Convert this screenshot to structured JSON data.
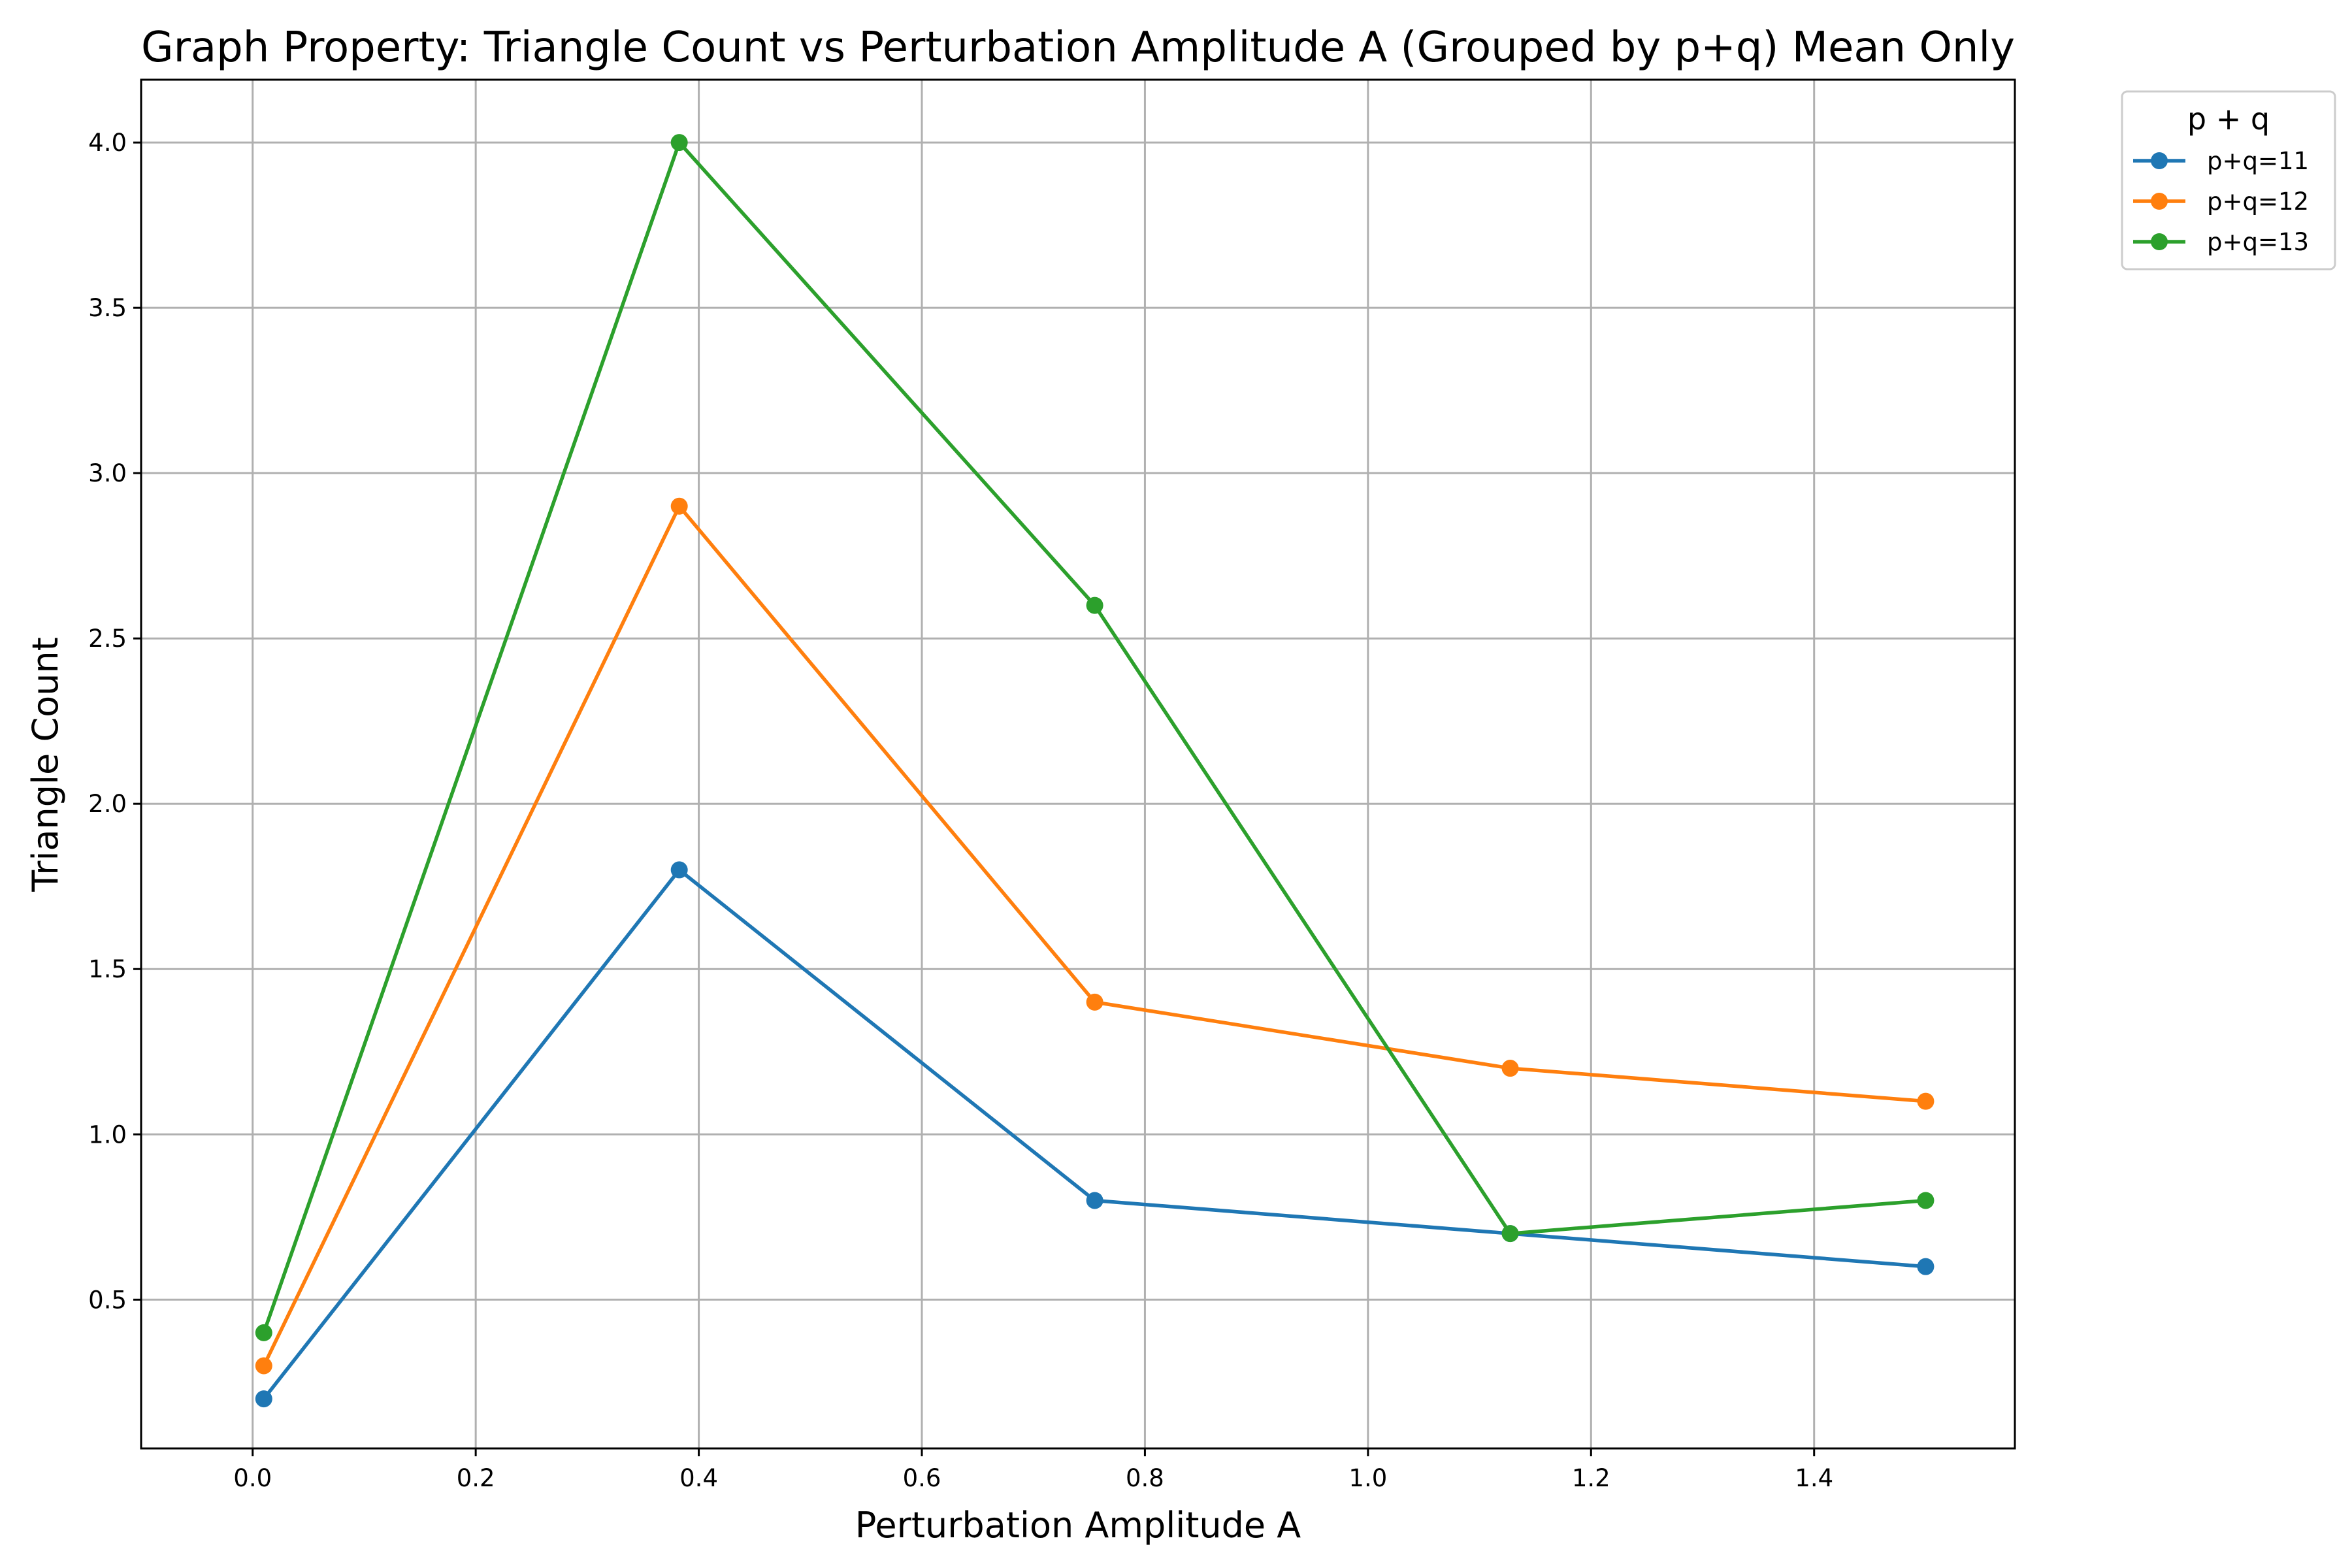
{
  "chart_data": {
    "type": "line",
    "title": "Graph Property: Triangle Count vs Perturbation Amplitude A (Grouped by p+q) Mean Only",
    "xlabel": "Perturbation Amplitude A",
    "ylabel": "Triangle Count",
    "xlim": [
      -0.1,
      1.58
    ],
    "ylim": [
      0.05,
      4.19
    ],
    "x_ticks": [
      "0.0",
      "0.2",
      "0.4",
      "0.6",
      "0.8",
      "1.0",
      "1.2",
      "1.4"
    ],
    "y_ticks": [
      "0.5",
      "1.0",
      "1.5",
      "2.0",
      "2.5",
      "3.0",
      "3.5",
      "4.0"
    ],
    "grid": true,
    "legend": {
      "title": "p + q",
      "placement": "outside-top-right"
    },
    "x": [
      0.01,
      0.3825,
      0.755,
      1.1275,
      1.5
    ],
    "series": [
      {
        "name": "p+q=11",
        "color": "#1f77b4",
        "values": [
          0.2,
          1.8,
          0.8,
          0.7,
          0.6
        ]
      },
      {
        "name": "p+q=12",
        "color": "#ff7f0e",
        "values": [
          0.3,
          2.9,
          1.4,
          1.2,
          1.1
        ]
      },
      {
        "name": "p+q=13",
        "color": "#2ca02c",
        "values": [
          0.4,
          4.0,
          2.6,
          0.7,
          0.8
        ]
      }
    ]
  }
}
